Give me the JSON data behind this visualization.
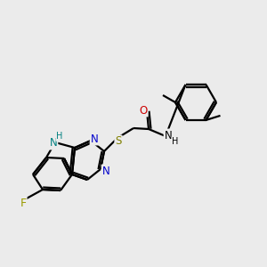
{
  "background_color": "#ebebeb",
  "bond_color": "#000000",
  "atom_colors": {
    "F": "#9b9b00",
    "N": "#0000cc",
    "O": "#cc0000",
    "S": "#808000",
    "NH": "#008080",
    "C": "#000000"
  },
  "figsize": [
    3.0,
    3.0
  ],
  "dpi": 100,
  "lw": 1.6
}
